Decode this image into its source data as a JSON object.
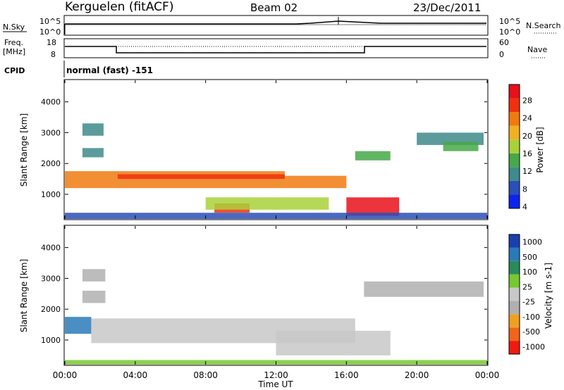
{
  "header": {
    "station": "Kerguelen (fitACF)",
    "beam": "Beam 02",
    "date": "23/Dec/2011"
  },
  "noise_panel": {
    "left_label": "N.Sky",
    "right_label": "N.Search",
    "left_ticks": [
      "10^5",
      "10^0"
    ],
    "right_ticks": [
      "10^5",
      "10^0"
    ]
  },
  "freq_panel": {
    "left_label_1": "Freq.",
    "left_label_2": "[MHz]",
    "right_label": "Nave",
    "left_ticks": [
      "18",
      "8"
    ],
    "right_ticks": [
      "60",
      "0"
    ]
  },
  "cpid": {
    "label": "CPID",
    "value": "normal (fast) -151"
  },
  "colors": {
    "power_scale": [
      "#0a24f0",
      "#2a4fb8",
      "#3f8a8a",
      "#46a848",
      "#a9d13a",
      "#f0b020",
      "#f07a10",
      "#f03010",
      "#e8101a"
    ],
    "velocity_scale": [
      "#f01a10",
      "#f0651a",
      "#f0a020",
      "#b0b0b0",
      "#c8c8c8",
      "#78c830",
      "#2a8a5a",
      "#2a7ab8",
      "#1a3fb0"
    ],
    "ground_scatter": "#bdbdb5"
  },
  "chart_data": [
    {
      "type": "heatmap",
      "name": "power",
      "ylabel": "Slant Range [km]",
      "y_ticks": [
        "4000",
        "3000",
        "2000",
        "1000"
      ],
      "ylim": [
        200,
        4700
      ],
      "x_ticks": [
        "00:00",
        "04:00",
        "08:00",
        "12:00",
        "16:00",
        "20:00",
        "00:00"
      ],
      "xlim_hours": [
        0,
        24
      ],
      "colorbar_label": "Power [dB]",
      "colorbar_ticks": [
        "28",
        "24",
        "20",
        "16",
        "12",
        "8",
        "4"
      ],
      "regions": [
        {
          "t": [
            0.0,
            12.5
          ],
          "r": [
            1200,
            1750
          ],
          "level": 6
        },
        {
          "t": [
            12.5,
            16.0
          ],
          "r": [
            1200,
            1600
          ],
          "level": 6
        },
        {
          "t": [
            3.0,
            12.5
          ],
          "r": [
            1500,
            1650
          ],
          "level": 7
        },
        {
          "t": [
            8.5,
            10.5
          ],
          "r": [
            400,
            700
          ],
          "level": 7
        },
        {
          "t": [
            16.0,
            19.0
          ],
          "r": [
            300,
            900
          ],
          "level": 8
        },
        {
          "t": [
            1.0,
            2.2
          ],
          "r": [
            2900,
            3300
          ],
          "level": 2
        },
        {
          "t": [
            1.0,
            2.2
          ],
          "r": [
            2200,
            2500
          ],
          "level": 2
        },
        {
          "t": [
            8.0,
            15.0
          ],
          "r": [
            500,
            900
          ],
          "level": 4
        },
        {
          "t": [
            16.5,
            18.5
          ],
          "r": [
            2100,
            2400
          ],
          "level": 3
        },
        {
          "t": [
            20.0,
            23.8
          ],
          "r": [
            2600,
            3000
          ],
          "level": 2
        },
        {
          "t": [
            21.5,
            23.5
          ],
          "r": [
            2400,
            2700
          ],
          "level": 3
        },
        {
          "t": [
            0.0,
            24.0
          ],
          "r": [
            200,
            400
          ],
          "level": 1
        }
      ]
    },
    {
      "type": "heatmap",
      "name": "velocity",
      "ylabel": "Slant Range [km]",
      "y_ticks": [
        "4000",
        "3000",
        "2000",
        "1000"
      ],
      "ylim": [
        200,
        4700
      ],
      "x_ticks": [
        "00:00",
        "04:00",
        "08:00",
        "12:00",
        "16:00",
        "20:00",
        "00:00"
      ],
      "xlim_hours": [
        0,
        24
      ],
      "xlabel": "Time UT",
      "colorbar_label": "Velocity [m s-1]",
      "colorbar_ticks": [
        "1000",
        "500",
        "100",
        "25",
        "-25",
        "-100",
        "-500",
        "-1000"
      ],
      "regions": [
        {
          "t": [
            0.0,
            1.5
          ],
          "r": [
            1200,
            1750
          ],
          "level": 7
        },
        {
          "t": [
            1.5,
            16.5
          ],
          "r": [
            900,
            1700
          ],
          "level": 4
        },
        {
          "t": [
            12.0,
            18.5
          ],
          "r": [
            500,
            1300
          ],
          "level": 4
        },
        {
          "t": [
            0.0,
            24.0
          ],
          "r": [
            200,
            350
          ],
          "level": 5
        },
        {
          "t": [
            1.0,
            2.3
          ],
          "r": [
            2200,
            2600
          ],
          "level": 3
        },
        {
          "t": [
            1.0,
            2.3
          ],
          "r": [
            2900,
            3300
          ],
          "level": 3
        },
        {
          "t": [
            17.0,
            23.8
          ],
          "r": [
            2400,
            2900
          ],
          "level": 3
        }
      ]
    }
  ]
}
